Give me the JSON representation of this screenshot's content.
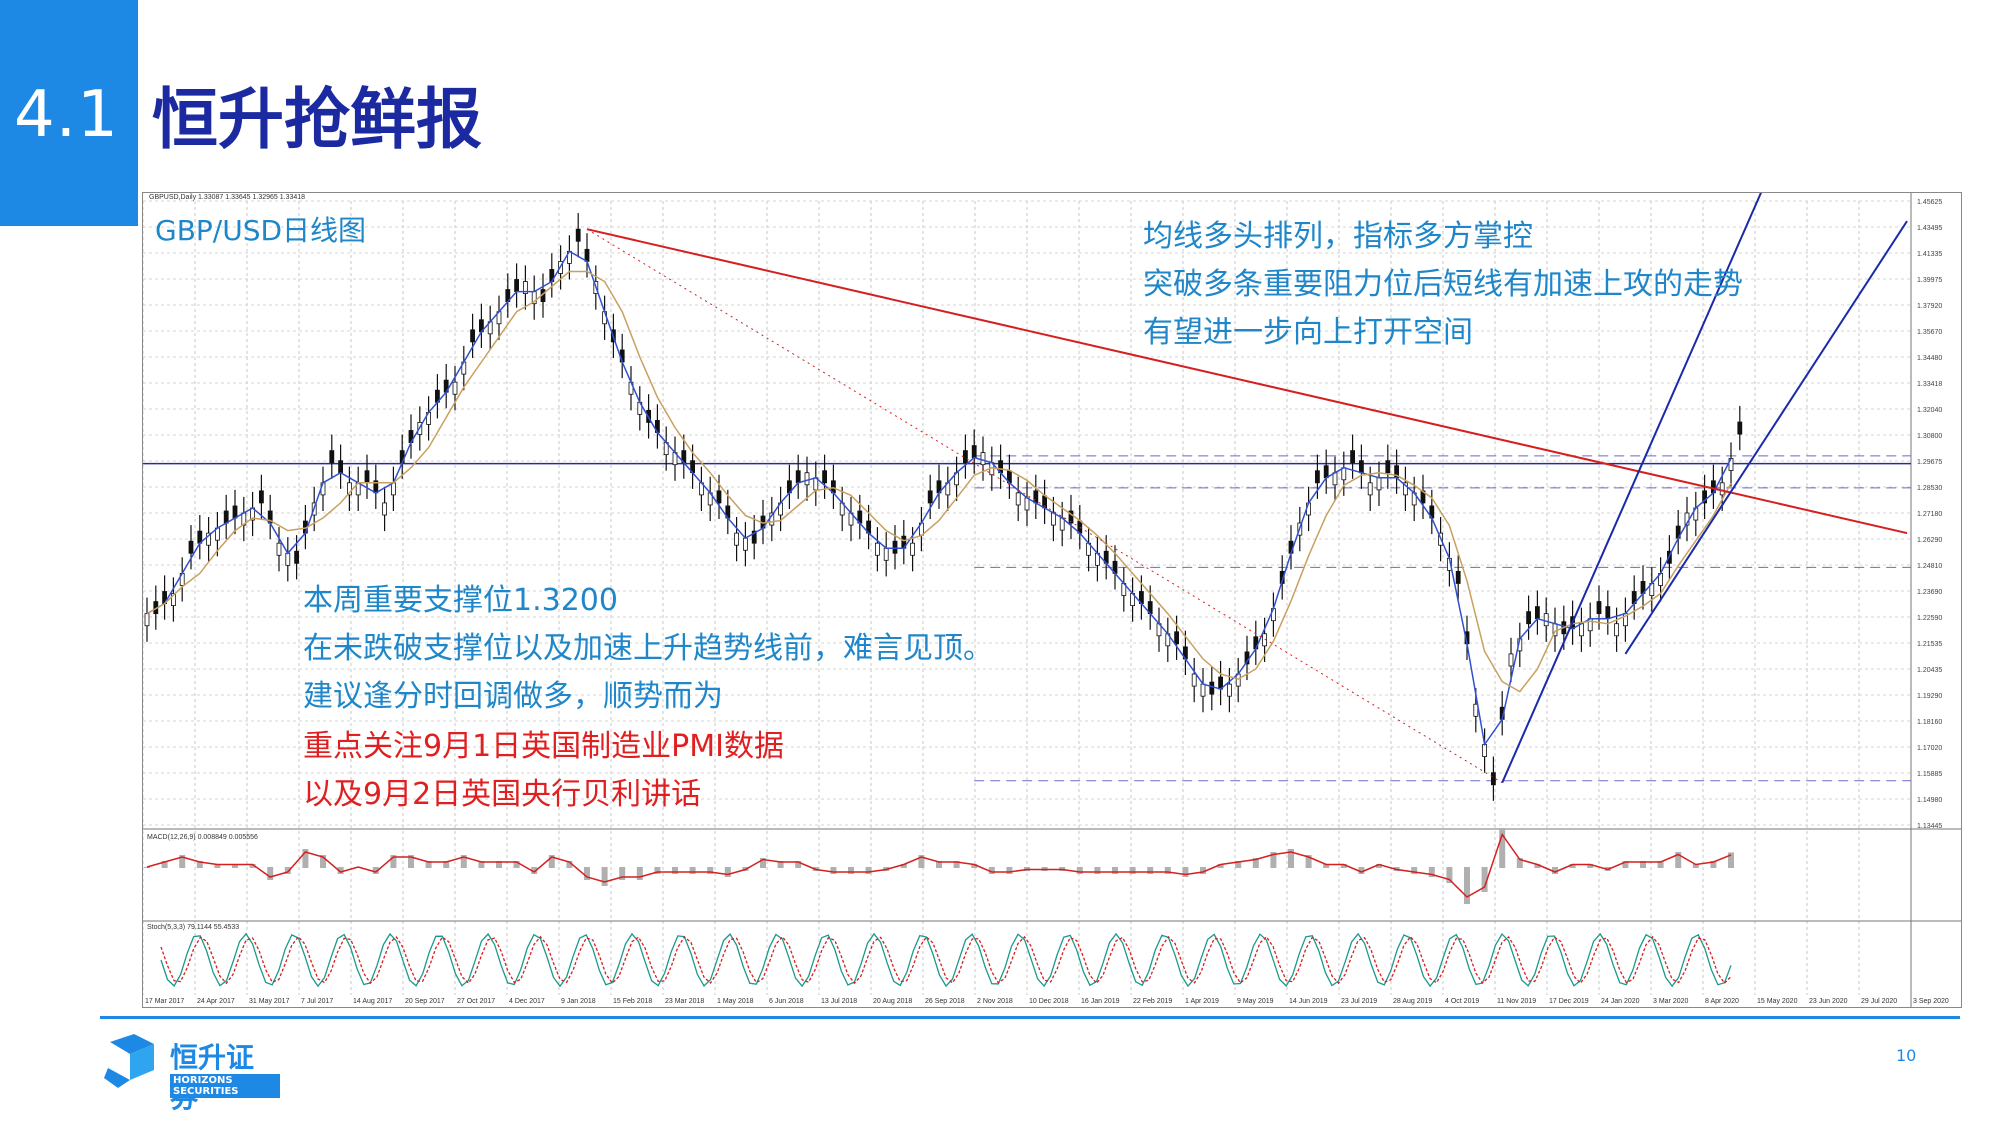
{
  "section": {
    "number": "4.1"
  },
  "slide": {
    "title": "恒升抢鲜报"
  },
  "chart": {
    "pair_label": "GBP/USD日线图",
    "header_text": "GBPUSD,Daily  1.33087 1.33645 1.32965 1.33418",
    "macd_label": "MACD(12,26,9) 0.008849 0.005556",
    "stoch_label": "Stoch(5,3,3) 79.1144 55.4533"
  },
  "annotations": {
    "top_right": [
      "均线多头排列，指标多方掌控",
      "突破多条重要阻力位后短线有加速上攻的走势",
      "有望进一步向上打开空间"
    ],
    "bottom_left_blue": [
      "本周重要支撑位1.3200",
      "在未跌破支撑位以及加速上升趋势线前，难言见顶。",
      "建议逢分时回调做多，顺势而为"
    ],
    "bottom_left_red": [
      "重点关注9月1日英国制造业PMI数据",
      "以及9月2日英国央行贝利讲话"
    ]
  },
  "colors": {
    "accent_blue": "#1e88e5",
    "title_navy": "#1b2aa0",
    "annotation_blue": "#1f87c9",
    "annotation_red": "#e02020",
    "trend_red": "#d42020",
    "trend_blue": "#1a2aa8",
    "ma_fast": "#3050d0",
    "ma_slow": "#c8a060"
  },
  "chart_data": {
    "type": "line",
    "title": "GBP/USD日线图",
    "symbol": "GBPUSD Daily",
    "y_ticks": [
      "1.45625",
      "1.43495",
      "1.41335",
      "1.39975",
      "1.37920",
      "1.35670",
      "1.34480",
      "1.33418",
      "1.32040",
      "1.30800",
      "1.29675",
      "1.28530",
      "1.27180",
      "1.26290",
      "1.24810",
      "1.23690",
      "1.22590",
      "1.21535",
      "1.20435",
      "1.19290",
      "1.18160",
      "1.17020",
      "1.15885",
      "1.14980",
      "1.13445"
    ],
    "x_ticks": [
      "17 Mar 2017",
      "24 Apr 2017",
      "31 May 2017",
      "7 Jul 2017",
      "14 Aug 2017",
      "20 Sep 2017",
      "27 Oct 2017",
      "4 Dec 2017",
      "9 Jan 2018",
      "15 Feb 2018",
      "23 Mar 2018",
      "1 May 2018",
      "6 Jun 2018",
      "13 Jul 2018",
      "20 Aug 2018",
      "26 Sep 2018",
      "2 Nov 2018",
      "10 Dec 2018",
      "16 Jan 2019",
      "22 Feb 2019",
      "1 Apr 2019",
      "9 May 2019",
      "14 Jun 2019",
      "23 Jul 2019",
      "28 Aug 2019",
      "4 Oct 2019",
      "11 Nov 2019",
      "17 Dec 2019",
      "24 Jan 2020",
      "3 Mar 2020",
      "8 Apr 2020",
      "15 May 2020",
      "23 Jun 2020",
      "29 Jul 2020",
      "3 Sep 2020"
    ],
    "ylim": [
      1.14,
      1.45
    ],
    "close_series": [
      [
        0,
        1.245
      ],
      [
        1,
        1.255
      ],
      [
        2,
        1.275
      ],
      [
        3,
        1.285
      ],
      [
        4,
        1.29
      ],
      [
        5,
        1.295
      ],
      [
        6,
        1.3
      ],
      [
        7,
        1.28
      ],
      [
        8,
        1.27
      ],
      [
        9,
        1.3
      ],
      [
        10,
        1.32
      ],
      [
        11,
        1.31
      ],
      [
        12,
        1.31
      ],
      [
        13,
        1.3
      ],
      [
        14,
        1.32
      ],
      [
        15,
        1.34
      ],
      [
        16,
        1.35
      ],
      [
        17,
        1.36
      ],
      [
        18,
        1.38
      ],
      [
        19,
        1.39
      ],
      [
        20,
        1.4
      ],
      [
        21,
        1.41
      ],
      [
        22,
        1.4
      ],
      [
        23,
        1.42
      ],
      [
        24,
        1.43
      ],
      [
        25,
        1.41
      ],
      [
        26,
        1.38
      ],
      [
        27,
        1.36
      ],
      [
        28,
        1.34
      ],
      [
        29,
        1.33
      ],
      [
        30,
        1.32
      ],
      [
        31,
        1.31
      ],
      [
        32,
        1.3
      ],
      [
        33,
        1.285
      ],
      [
        34,
        1.28
      ],
      [
        35,
        1.295
      ],
      [
        36,
        1.305
      ],
      [
        37,
        1.315
      ],
      [
        38,
        1.31
      ],
      [
        39,
        1.3
      ],
      [
        40,
        1.29
      ],
      [
        41,
        1.28
      ],
      [
        42,
        1.275
      ],
      [
        43,
        1.28
      ],
      [
        44,
        1.3
      ],
      [
        45,
        1.31
      ],
      [
        46,
        1.32
      ],
      [
        47,
        1.325
      ],
      [
        48,
        1.315
      ],
      [
        49,
        1.305
      ],
      [
        50,
        1.3
      ],
      [
        51,
        1.295
      ],
      [
        52,
        1.29
      ],
      [
        53,
        1.28
      ],
      [
        54,
        1.27
      ],
      [
        55,
        1.26
      ],
      [
        56,
        1.25
      ],
      [
        57,
        1.24
      ],
      [
        58,
        1.23
      ],
      [
        59,
        1.215
      ],
      [
        60,
        1.205
      ],
      [
        61,
        1.21
      ],
      [
        62,
        1.22
      ],
      [
        63,
        1.235
      ],
      [
        64,
        1.26
      ],
      [
        65,
        1.29
      ],
      [
        66,
        1.31
      ],
      [
        67,
        1.315
      ],
      [
        68,
        1.32
      ],
      [
        69,
        1.31
      ],
      [
        70,
        1.315
      ],
      [
        71,
        1.31
      ],
      [
        72,
        1.3
      ],
      [
        73,
        1.285
      ],
      [
        74,
        1.26
      ],
      [
        75,
        1.2
      ],
      [
        76,
        1.16
      ],
      [
        77,
        1.225
      ],
      [
        78,
        1.24
      ],
      [
        79,
        1.245
      ],
      [
        80,
        1.235
      ],
      [
        81,
        1.24
      ],
      [
        82,
        1.245
      ],
      [
        83,
        1.24
      ],
      [
        84,
        1.25
      ],
      [
        85,
        1.26
      ],
      [
        86,
        1.27
      ],
      [
        87,
        1.295
      ],
      [
        88,
        1.3
      ],
      [
        89,
        1.31
      ],
      [
        90,
        1.3342
      ]
    ],
    "trend_lines": [
      {
        "name": "resistance",
        "from": [
          25,
          1.436
        ],
        "to": [
          100,
          1.285
        ],
        "color": "#d42020"
      },
      {
        "name": "support_steep",
        "from": [
          77,
          1.161
        ],
        "to": [
          92,
          1.46
        ],
        "color": "#1a2aa8"
      },
      {
        "name": "support_mid",
        "from": [
          84,
          1.225
        ],
        "to": [
          100,
          1.44
        ],
        "color": "#1a2aa8"
      }
    ],
    "horizontal_lines": [
      1.3195,
      1.3234,
      1.3075,
      1.268,
      1.162
    ],
    "support_level": 1.32,
    "grid": true
  }
}
